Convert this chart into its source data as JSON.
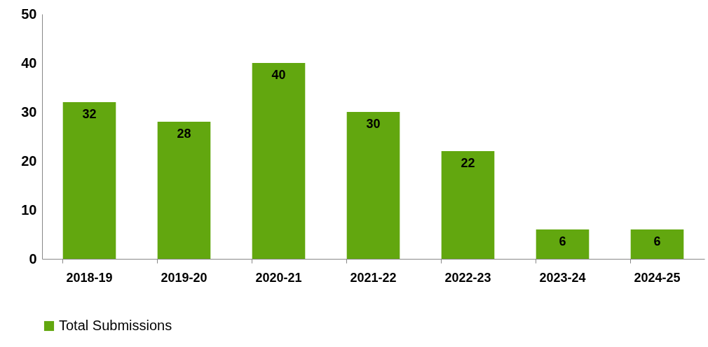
{
  "chart_data": {
    "type": "bar",
    "categories": [
      "2018-19",
      "2019-20",
      "2020-21",
      "2021-22",
      "2022-23",
      "2023-24",
      "2024-25"
    ],
    "series": [
      {
        "name": "Total Submissions",
        "color": "#62a70f",
        "values": [
          32,
          28,
          40,
          30,
          22,
          6,
          6
        ]
      }
    ],
    "ylim": [
      0,
      50
    ],
    "yticks": [
      0,
      10,
      20,
      30,
      40,
      50
    ],
    "grid": false,
    "legend": "bottom",
    "data_labels": true
  }
}
